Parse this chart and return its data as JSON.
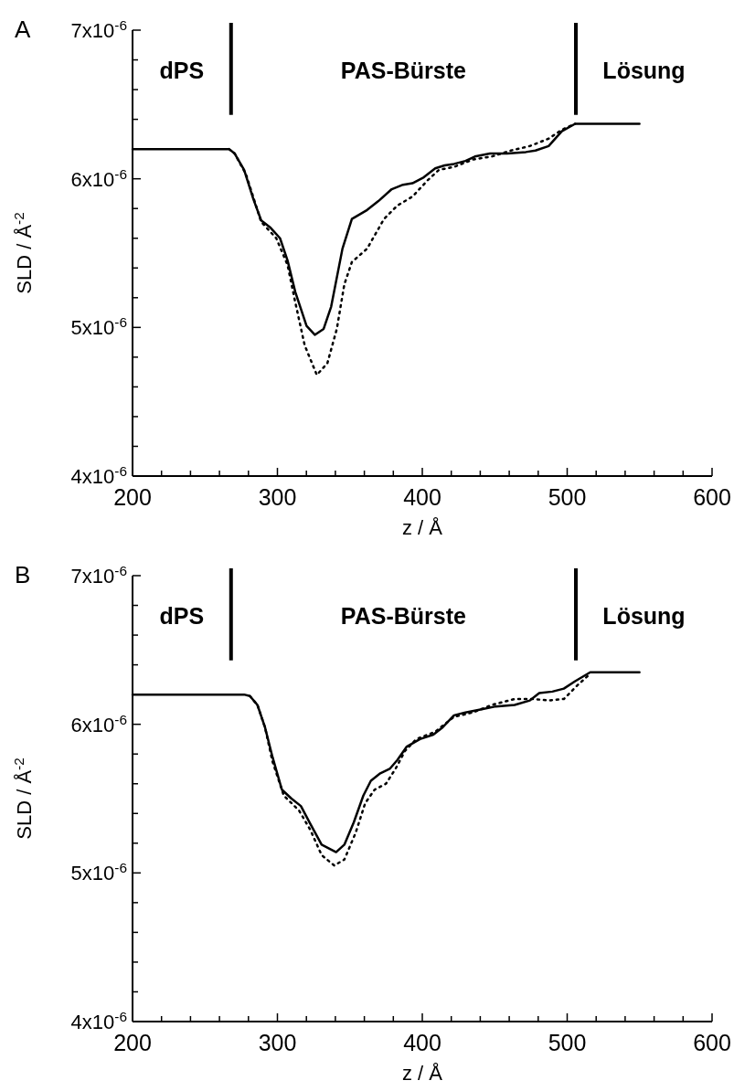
{
  "chart_data": [
    {
      "type": "line",
      "title": "A",
      "xlabel": "z / Å",
      "ylabel": "SLD / Å$^{-2}$",
      "xlim": [
        200,
        600
      ],
      "ylim": [
        4e-06,
        7e-06
      ],
      "xticks": [
        200,
        {
          "value": 220,
          "label": null
        },
        {
          "value": 240,
          "label": null
        },
        {
          "value": 260,
          "label": null
        },
        {
          "value": 280,
          "label": null
        },
        300,
        {
          "value": 320,
          "label": null
        },
        {
          "value": 340,
          "label": null
        },
        {
          "value": 360,
          "label": null
        },
        {
          "value": 380,
          "label": null
        },
        400,
        {
          "value": 420,
          "label": null
        },
        {
          "value": 440,
          "label": null
        },
        {
          "value": 460,
          "label": null
        },
        {
          "value": 480,
          "label": null
        },
        500,
        {
          "value": 520,
          "label": null
        },
        {
          "value": 540,
          "label": null
        },
        {
          "value": 560,
          "label": null
        },
        {
          "value": 580,
          "label": null
        },
        600
      ],
      "yticks": [
        {
          "value": 4e-06,
          "label": "4x10$^{-6}$"
        },
        {
          "value": 4.2e-06,
          "label": null
        },
        {
          "value": 4.4e-06,
          "label": null
        },
        {
          "value": 4.6e-06,
          "label": null
        },
        {
          "value": 4.8e-06,
          "label": null
        },
        {
          "value": 5e-06,
          "label": "5x10$^{-6}$"
        },
        {
          "value": 5.2e-06,
          "label": null
        },
        {
          "value": 5.4e-06,
          "label": null
        },
        {
          "value": 5.6e-06,
          "label": null
        },
        {
          "value": 5.8e-06,
          "label": null
        },
        {
          "value": 6e-06,
          "label": "6x10$^{-6}$"
        },
        {
          "value": 6.2e-06,
          "label": null
        },
        {
          "value": 6.4e-06,
          "label": null
        },
        {
          "value": 6.6e-06,
          "label": null
        },
        {
          "value": 6.8e-06,
          "label": null
        },
        {
          "value": 7e-06,
          "label": "7x10$^{-6}$"
        }
      ],
      "series": [
        {
          "color": "#000000",
          "line_style": "solid",
          "x": [
            200,
            266.6,
            270.5,
            277,
            283.5,
            288.8,
            295.3,
            301.8,
            307,
            312.3,
            320.1,
            325.8,
            331.9,
            337.1,
            344.9,
            351.4,
            361.9,
            369.7,
            378.9,
            386.7,
            393.2,
            401,
            408.9,
            415.4,
            421.9,
            429.8,
            436.3,
            446.7,
            458.5,
            471.5,
            478.1,
            487.2,
            496.3,
            505.5,
            549.9
          ],
          "values": [
            6.2e-06,
            6.2e-06,
            6.17e-06,
            6.06e-06,
            5.86e-06,
            5.72e-06,
            5.67e-06,
            5.6e-06,
            5.45e-06,
            5.24e-06,
            5.01e-06,
            4.95e-06,
            4.99e-06,
            5.14e-06,
            5.53e-06,
            5.73e-06,
            5.79e-06,
            5.85e-06,
            5.93e-06,
            5.96e-06,
            5.97e-06,
            6.01e-06,
            6.07e-06,
            6.09e-06,
            6.1e-06,
            6.12e-06,
            6.15e-06,
            6.17e-06,
            6.17e-06,
            6.18e-06,
            6.19e-06,
            6.22e-06,
            6.32e-06,
            6.37e-06,
            6.37e-06
          ]
        },
        {
          "color": "#000000",
          "line_style": "dotted",
          "x": [
            266.6,
            270.5,
            278.3,
            288.8,
            299.2,
            307,
            312.3,
            318.8,
            327.2,
            334.5,
            341,
            346.2,
            351.4,
            361.9,
            373.6,
            382.8,
            393.2,
            403.7,
            411.5,
            421.9,
            435,
            448,
            461.1,
            474.2,
            487.2,
            496.3,
            505.5
          ],
          "values": [
            6.2e-06,
            6.17e-06,
            6.03e-06,
            5.71e-06,
            5.6e-06,
            5.42e-06,
            5.17e-06,
            4.88e-06,
            4.68e-06,
            4.76e-06,
            4.99e-06,
            5.29e-06,
            5.44e-06,
            5.53e-06,
            5.73e-06,
            5.82e-06,
            5.88e-06,
            5.99e-06,
            6.06e-06,
            6.08e-06,
            6.13e-06,
            6.15e-06,
            6.19e-06,
            6.22e-06,
            6.27e-06,
            6.33e-06,
            6.37e-06
          ]
        }
      ],
      "ref_lines": [
        {
          "axis": "x",
          "value": 268
        },
        {
          "axis": "x",
          "value": 506
        }
      ],
      "annotations": [
        "dPS",
        "PAS-Bürste",
        "Lösung"
      ]
    },
    {
      "type": "line",
      "title": "B",
      "xlabel": "z / Å",
      "ylabel": "SLD / Å$^{-2}$",
      "xlim": [
        200,
        600
      ],
      "ylim": [
        4e-06,
        7e-06
      ],
      "xticks": [
        200,
        {
          "value": 220,
          "label": null
        },
        {
          "value": 240,
          "label": null
        },
        {
          "value": 260,
          "label": null
        },
        {
          "value": 280,
          "label": null
        },
        300,
        {
          "value": 320,
          "label": null
        },
        {
          "value": 340,
          "label": null
        },
        {
          "value": 360,
          "label": null
        },
        {
          "value": 380,
          "label": null
        },
        400,
        {
          "value": 420,
          "label": null
        },
        {
          "value": 440,
          "label": null
        },
        {
          "value": 460,
          "label": null
        },
        {
          "value": 480,
          "label": null
        },
        500,
        {
          "value": 520,
          "label": null
        },
        {
          "value": 540,
          "label": null
        },
        {
          "value": 560,
          "label": null
        },
        {
          "value": 580,
          "label": null
        },
        600
      ],
      "yticks": [
        {
          "value": 4e-06,
          "label": "4x10$^{-6}$"
        },
        {
          "value": 4.2e-06,
          "label": null
        },
        {
          "value": 4.4e-06,
          "label": null
        },
        {
          "value": 4.6e-06,
          "label": null
        },
        {
          "value": 4.8e-06,
          "label": null
        },
        {
          "value": 5e-06,
          "label": "5x10$^{-6}$"
        },
        {
          "value": 5.2e-06,
          "label": null
        },
        {
          "value": 5.4e-06,
          "label": null
        },
        {
          "value": 5.6e-06,
          "label": null
        },
        {
          "value": 5.8e-06,
          "label": null
        },
        {
          "value": 6e-06,
          "label": "6x10$^{-6}$"
        },
        {
          "value": 6.2e-06,
          "label": null
        },
        {
          "value": 6.4e-06,
          "label": null
        },
        {
          "value": 6.6e-06,
          "label": null
        },
        {
          "value": 6.8e-06,
          "label": null
        },
        {
          "value": 7e-06,
          "label": "7x10$^{-6}$"
        }
      ],
      "series": [
        {
          "color": "#000000",
          "line_style": "solid",
          "x": [
            200,
            277,
            281,
            286.2,
            291.4,
            296.6,
            303.1,
            309.7,
            316.2,
            322.7,
            330.5,
            340.5,
            346.2,
            352.7,
            359.3,
            364.5,
            371,
            377.5,
            382.8,
            389.3,
            398.4,
            407.6,
            414.1,
            421.9,
            429.8,
            440.2,
            450.7,
            463.7,
            474.2,
            480.7,
            489.8,
            497.7,
            505.5,
            515.9,
            549.9
          ],
          "values": [
            6.2e-06,
            6.2e-06,
            6.19e-06,
            6.13e-06,
            5.98e-06,
            5.78e-06,
            5.56e-06,
            5.5e-06,
            5.45e-06,
            5.33e-06,
            5.19e-06,
            5.14e-06,
            5.19e-06,
            5.34e-06,
            5.52e-06,
            5.62e-06,
            5.67e-06,
            5.7e-06,
            5.76e-06,
            5.85e-06,
            5.9e-06,
            5.93e-06,
            5.98e-06,
            6.06e-06,
            6.08e-06,
            6.1e-06,
            6.12e-06,
            6.13e-06,
            6.16e-06,
            6.21e-06,
            6.22e-06,
            6.24e-06,
            6.29e-06,
            6.35e-06,
            6.35e-06
          ]
        },
        {
          "color": "#000000",
          "line_style": "dotted",
          "x": [
            281,
            286.2,
            291.4,
            296.6,
            304.4,
            314.9,
            322.7,
            330.5,
            339.2,
            346.2,
            354,
            360.6,
            367.1,
            374.9,
            381.5,
            388,
            395.8,
            408.9,
            421.9,
            435,
            448,
            463.7,
            476.8,
            487.2,
            497.7,
            506.8,
            515.9
          ],
          "values": [
            6.19e-06,
            6.13e-06,
            5.98e-06,
            5.75e-06,
            5.52e-06,
            5.42e-06,
            5.29e-06,
            5.12e-06,
            5.05e-06,
            5.09e-06,
            5.27e-06,
            5.47e-06,
            5.56e-06,
            5.6e-06,
            5.7e-06,
            5.82e-06,
            5.9e-06,
            5.95e-06,
            6.05e-06,
            6.08e-06,
            6.13e-06,
            6.17e-06,
            6.17e-06,
            6.16e-06,
            6.17e-06,
            6.26e-06,
            6.34e-06
          ]
        }
      ],
      "ref_lines": [
        {
          "axis": "x",
          "value": 268
        },
        {
          "axis": "x",
          "value": 506
        }
      ],
      "annotations": [
        "dPS",
        "PAS-Bürste",
        "Lösung"
      ]
    }
  ]
}
